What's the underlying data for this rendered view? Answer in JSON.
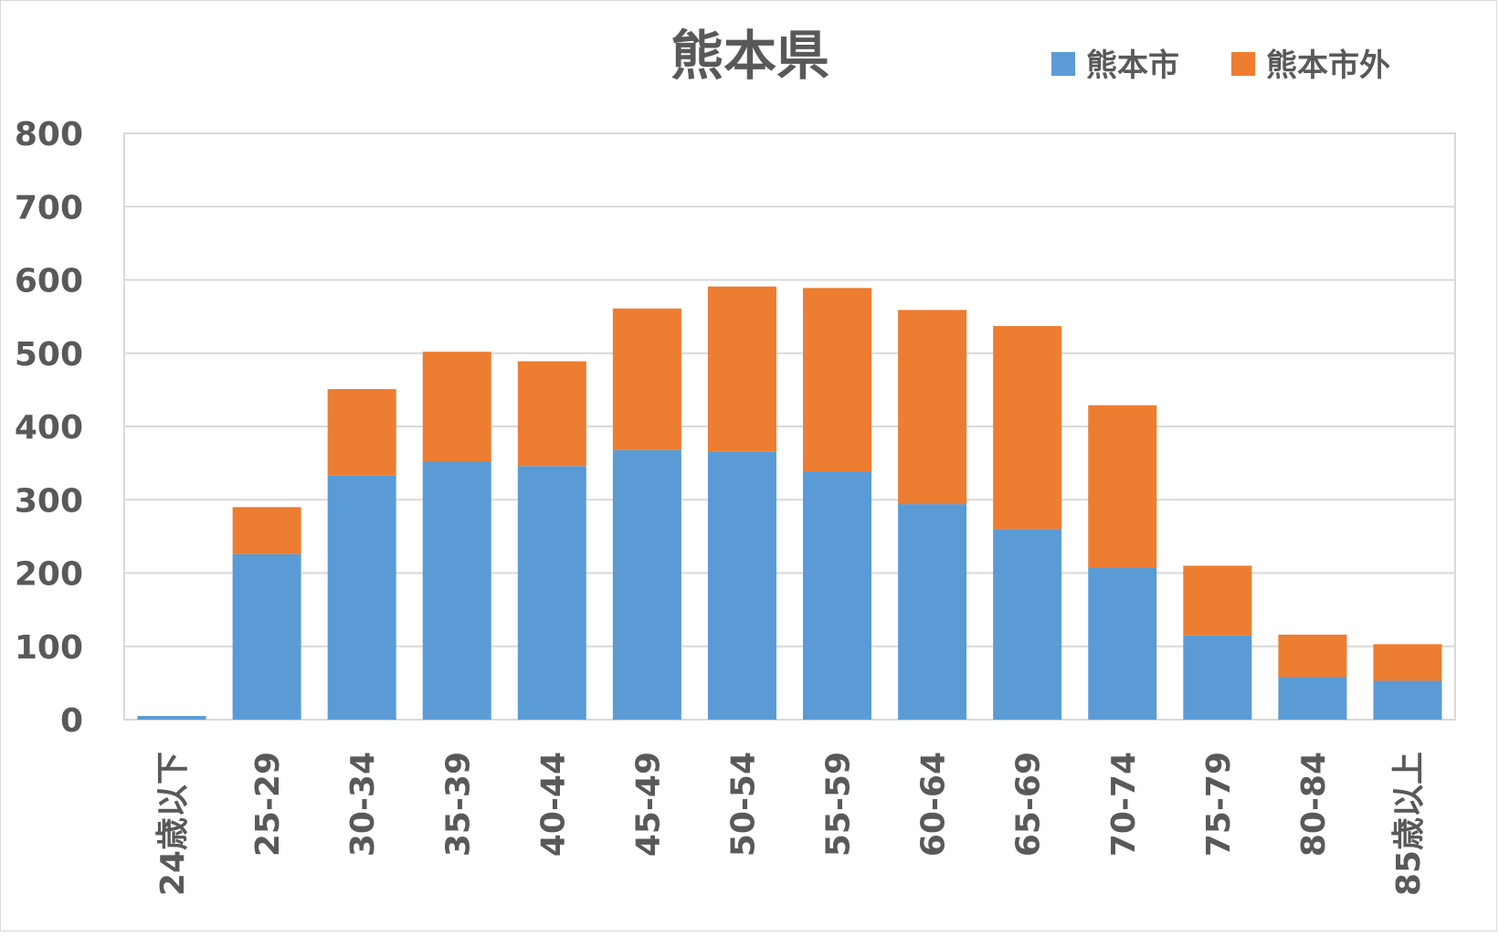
{
  "chart_data": {
    "type": "bar",
    "stacked": true,
    "title": "熊本県",
    "categories": [
      "24歳以下",
      "25-29",
      "30-34",
      "35-39",
      "40-44",
      "45-49",
      "50-54",
      "55-59",
      "60-64",
      "65-69",
      "70-74",
      "75-79",
      "80-84",
      "85歳以上"
    ],
    "series": [
      {
        "name": "熊本市",
        "color": "#5b9bd5",
        "values": [
          5,
          226,
          333,
          352,
          346,
          368,
          366,
          339,
          294,
          260,
          208,
          115,
          58,
          53
        ]
      },
      {
        "name": "熊本市外",
        "color": "#ed7d31",
        "values": [
          0,
          64,
          118,
          150,
          143,
          193,
          225,
          250,
          265,
          277,
          221,
          95,
          58,
          50
        ]
      }
    ],
    "ylim": [
      0,
      800
    ],
    "yticks": [
      "0",
      "100",
      "200",
      "300",
      "400",
      "500",
      "600",
      "700",
      "800"
    ],
    "grid": true,
    "legend_position": "top-right",
    "xlabel": "",
    "ylabel": ""
  }
}
